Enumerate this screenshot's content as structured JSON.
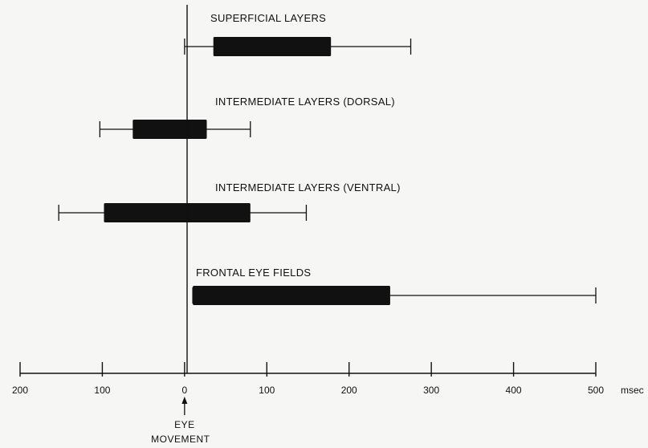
{
  "chart_data": {
    "type": "box",
    "x_unit": "msec",
    "x_ticks": [
      -200,
      -100,
      0,
      100,
      200,
      300,
      400,
      500
    ],
    "x_tick_labels": [
      "200",
      "100",
      "0",
      "100",
      "200",
      "300",
      "400",
      "500"
    ],
    "xlim": [
      -200,
      500
    ],
    "grid": false,
    "annotation": {
      "line1": "EYE",
      "line2": "MOVEMENT",
      "x": 0
    },
    "rows": [
      {
        "label": "SUPERFICIAL LAYERS",
        "whisker_low": 0,
        "box_low": 35,
        "box_high": 178,
        "whisker_high": 275
      },
      {
        "label": "INTERMEDIATE LAYERS (DORSAL)",
        "whisker_low": -103,
        "box_low": -63,
        "box_high": 27,
        "whisker_high": 80
      },
      {
        "label": "INTERMEDIATE LAYERS (VENTRAL)",
        "whisker_low": -153,
        "box_low": -98,
        "box_high": 80,
        "whisker_high": 148
      },
      {
        "label": "FRONTAL EYE FIELDS",
        "whisker_low": 10,
        "box_low": 10,
        "box_high": 250,
        "whisker_high": 500
      }
    ],
    "colors": {
      "ink": "#111111",
      "paper": "#f6f6f4"
    }
  }
}
